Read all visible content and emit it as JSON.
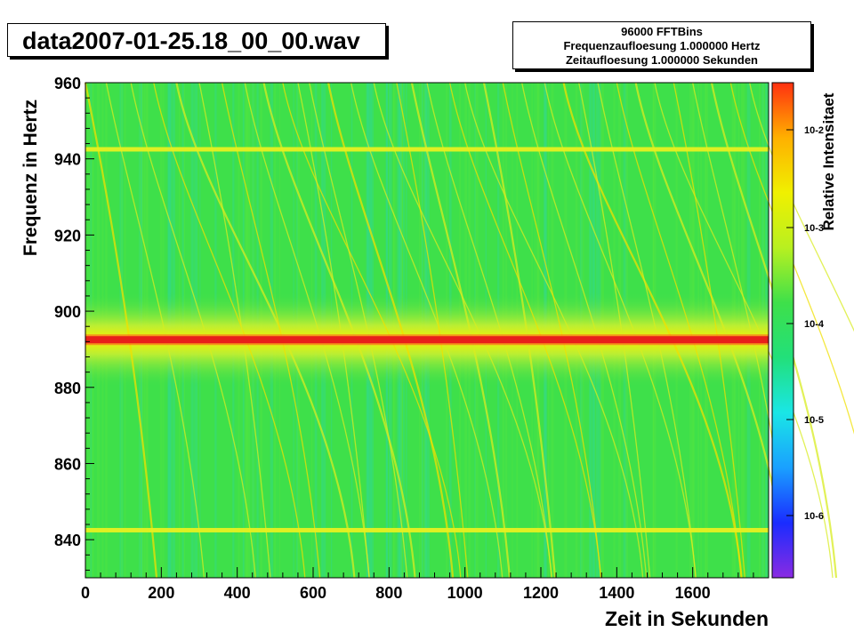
{
  "colors": {
    "background": "#ffffff",
    "plot_green": "#3ee04a",
    "band_red": "#e8201a",
    "palette": [
      "#8a2be2",
      "#1a2cff",
      "#1aa0ff",
      "#1ae6e6",
      "#22e07a",
      "#3ee04a",
      "#b8f020",
      "#f0f000",
      "#ffb000",
      "#ff3010"
    ]
  },
  "header": {
    "title": "data2007-01-25.18_00_00.wav"
  },
  "info": {
    "line1": "96000 FFTBins",
    "line2": "Frequenzaufloesung 1.000000 Hertz",
    "line3": "Zeitaufloesung 1.000000 Sekunden"
  },
  "chart_data": {
    "type": "heatmap",
    "title": "data2007-01-25.18_00_00.wav",
    "xlabel": "Zeit in Sekunden",
    "ylabel": "Frequenz in Hertz",
    "zlabel": "Relative Intensitaet",
    "xlim": [
      0,
      1800
    ],
    "ylim": [
      830,
      960
    ],
    "x_ticks": [
      "0",
      "200",
      "400",
      "600",
      "800",
      "1000",
      "1200",
      "1400",
      "1600"
    ],
    "y_ticks": [
      "840",
      "860",
      "880",
      "900",
      "920",
      "940",
      "960"
    ],
    "z_scale": "log",
    "z_ticks": [
      "10-2",
      "10-3",
      "10-4",
      "10-5",
      "10-6"
    ],
    "features": {
      "horizontal_lines_hz": [
        842.5,
        942.5
      ],
      "strong_carrier_hz": 892.5,
      "carrier_halo_hz": [
        880,
        905
      ]
    }
  }
}
